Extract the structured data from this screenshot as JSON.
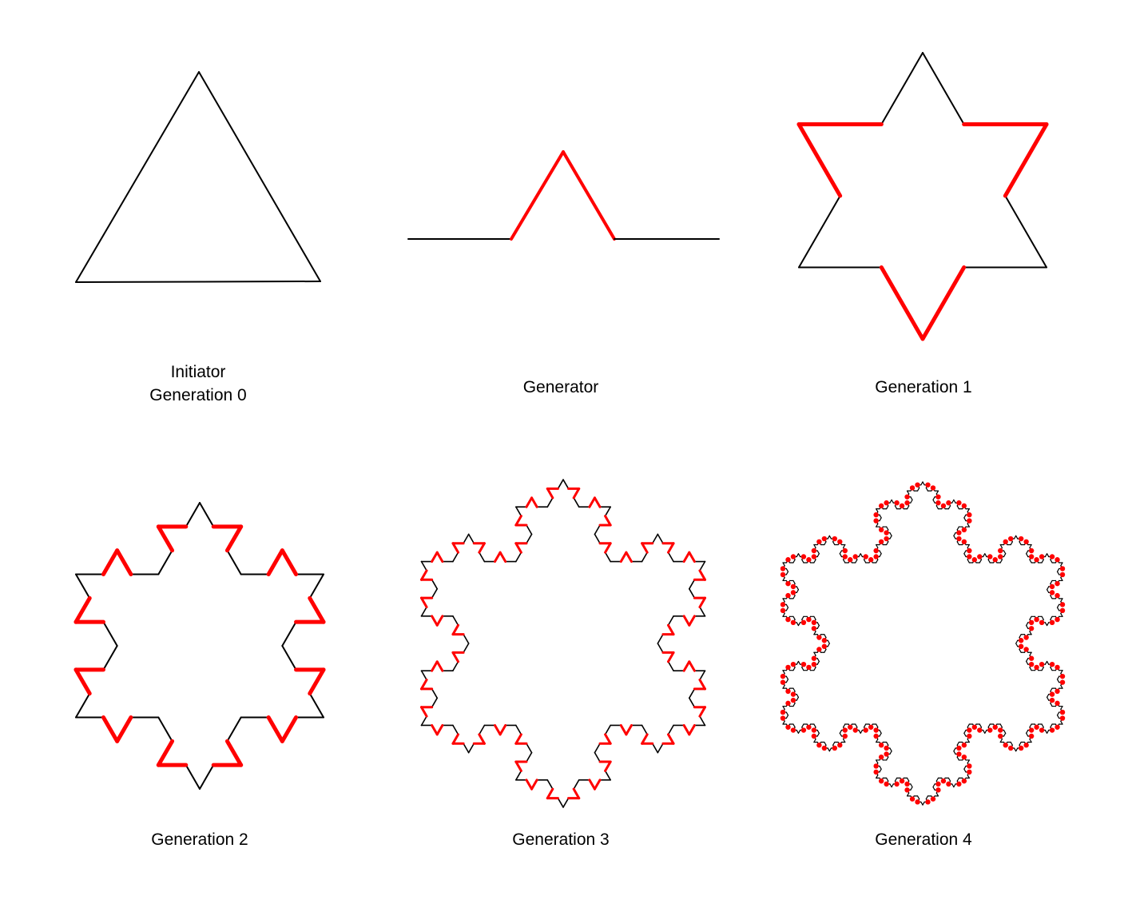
{
  "figure": {
    "colors": {
      "base_stroke": "#000000",
      "highlight_stroke": "#ff0000",
      "background": "#ffffff"
    },
    "panels": [
      {
        "id": "initiator",
        "caption_lines": [
          "Initiator",
          "Generation 0"
        ]
      },
      {
        "id": "generator",
        "caption_lines": [
          "Generator"
        ]
      },
      {
        "id": "gen1",
        "caption_lines": [
          "Generation 1"
        ]
      },
      {
        "id": "gen2",
        "caption_lines": [
          "Generation 2"
        ]
      },
      {
        "id": "gen3",
        "caption_lines": [
          "Generation 3"
        ]
      },
      {
        "id": "gen4",
        "caption_lines": [
          "Generation 4"
        ]
      }
    ]
  }
}
